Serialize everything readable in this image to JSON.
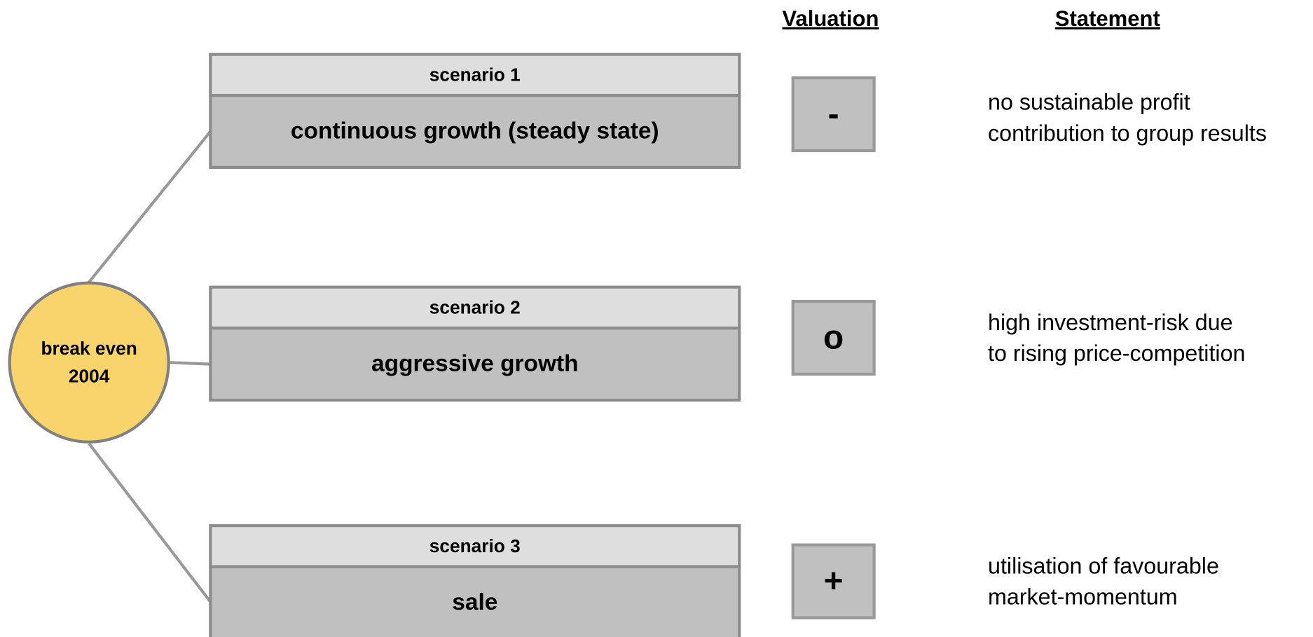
{
  "headers": {
    "valuation": "Valuation",
    "statement": "Statement"
  },
  "root": {
    "lines": [
      "break even",
      "2004"
    ]
  },
  "scenarios": [
    {
      "label": "scenario 1",
      "title": "continuous growth (steady state)",
      "valuation": "-",
      "statement": [
        "no sustainable profit",
        "contribution to group results"
      ]
    },
    {
      "label": "scenario 2",
      "title": "aggressive growth",
      "valuation": "o",
      "statement": [
        "high investment-risk due",
        "to rising price-competition"
      ]
    },
    {
      "label": "scenario 3",
      "title": "sale",
      "valuation": "+",
      "statement": [
        "utilisation of favourable",
        "market-momentum"
      ]
    }
  ]
}
